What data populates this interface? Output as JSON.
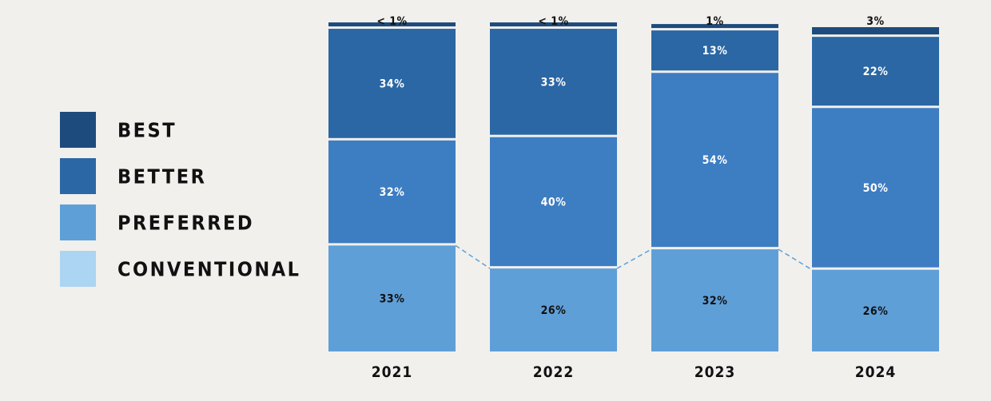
{
  "chart_data": {
    "type": "bar",
    "stacked": true,
    "normalized_percent": true,
    "categories": [
      "2021",
      "2022",
      "2023",
      "2024"
    ],
    "series": [
      {
        "name": "CONVENTIONAL",
        "color": "#acd4f3",
        "values": [
          0,
          0,
          0,
          0
        ],
        "labels": [
          "",
          "",
          "",
          ""
        ]
      },
      {
        "name": "PREFERRED",
        "color": "#5f9fd8",
        "values": [
          33,
          26,
          32,
          26
        ],
        "labels": [
          "33%",
          "26%",
          "32%",
          "26%"
        ]
      },
      {
        "name": "BETTER",
        "color": "#3d7dc2",
        "values": [
          32,
          40,
          54,
          50
        ],
        "labels": [
          "32%",
          "40%",
          "54%",
          "50%"
        ]
      },
      {
        "name": "BETTER",
        "color": "#2a67a4",
        "values": [
          34,
          33,
          13,
          22
        ],
        "labels": [
          "34%",
          "33%",
          "13%",
          "22%"
        ]
      },
      {
        "name": "BEST",
        "color": "#1e4b7d",
        "values": [
          0.5,
          0.5,
          1,
          3
        ],
        "labels": [
          "< 1%",
          "< 1%",
          "1%",
          "3%"
        ]
      }
    ],
    "legend": {
      "position": "left",
      "items": [
        {
          "label": "BEST",
          "color": "#1e4b7d"
        },
        {
          "label": "BETTER",
          "color": "#2a67a4"
        },
        {
          "label": "PREFERRED",
          "color": "#5f9fd8"
        },
        {
          "label": "CONVENTIONAL",
          "color": "#acd4f3"
        }
      ]
    },
    "connector_lines": "dashed",
    "ylim": [
      0,
      100
    ],
    "title": "",
    "xlabel": "",
    "ylabel": ""
  }
}
